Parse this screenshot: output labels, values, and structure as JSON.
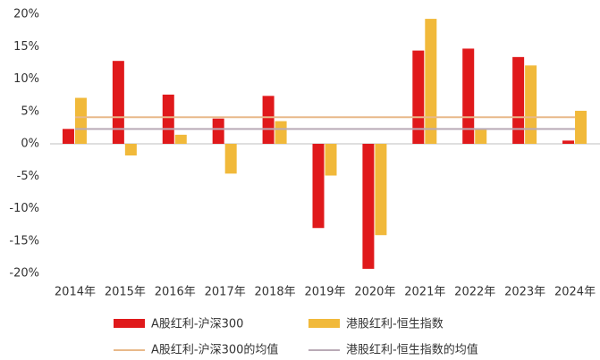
{
  "chart_data": {
    "type": "bar",
    "categories": [
      "2014年",
      "2015年",
      "2016年",
      "2017年",
      "2018年",
      "2019年",
      "2020年",
      "2021年",
      "2022年",
      "2023年",
      "2024年"
    ],
    "series": [
      {
        "name": "A股红利-沪深300",
        "color": "#e0191b",
        "values": [
          2.3,
          12.8,
          7.6,
          3.9,
          7.4,
          -13.0,
          -19.3,
          14.4,
          14.7,
          13.4,
          0.5
        ]
      },
      {
        "name": "港股红利-恒生指数",
        "color": "#f1b93a",
        "values": [
          7.1,
          -1.8,
          1.4,
          -4.6,
          3.5,
          -4.9,
          -14.1,
          19.3,
          2.2,
          12.1,
          5.1
        ]
      }
    ],
    "reference_lines": [
      {
        "name": "A股红利-沪深300的均值",
        "color": "#e8b98a",
        "value": 4.1
      },
      {
        "name": "港股红利-恒生指数的均值",
        "color": "#b9aab6",
        "value": 2.3
      }
    ],
    "ylim": [
      -20,
      20
    ],
    "yticks": [
      {
        "value": -20,
        "label": "-20%"
      },
      {
        "value": -15,
        "label": "-15%"
      },
      {
        "value": -10,
        "label": "-10%"
      },
      {
        "value": -5,
        "label": "-5%"
      },
      {
        "value": 0,
        "label": "0%"
      },
      {
        "value": 5,
        "label": "5%"
      },
      {
        "value": 10,
        "label": "10%"
      },
      {
        "value": 15,
        "label": "15%"
      },
      {
        "value": 20,
        "label": "20%"
      }
    ],
    "grid": false
  }
}
